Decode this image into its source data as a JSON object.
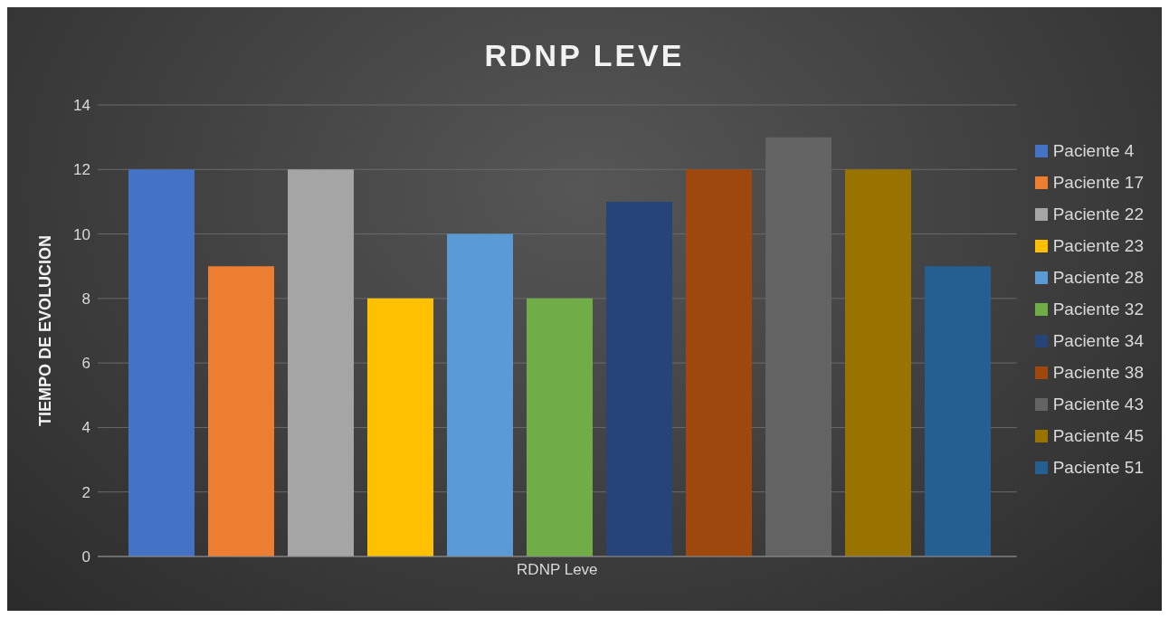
{
  "chart_data": {
    "type": "bar",
    "title": "RDNP LEVE",
    "xlabel": null,
    "ylabel": "TIEMPO DE EVOLUCION",
    "categories": [
      "RDNP Leve"
    ],
    "series": [
      {
        "name": "Paciente 4",
        "color": "#4472c4",
        "values": [
          12
        ]
      },
      {
        "name": "Paciente 17",
        "color": "#ed7d31",
        "values": [
          9
        ]
      },
      {
        "name": "Paciente 22",
        "color": "#a5a5a5",
        "values": [
          12
        ]
      },
      {
        "name": "Paciente 23",
        "color": "#ffc000",
        "values": [
          8
        ]
      },
      {
        "name": "Paciente 28",
        "color": "#5b9bd5",
        "values": [
          10
        ]
      },
      {
        "name": "Paciente 32",
        "color": "#70ad47",
        "values": [
          8
        ]
      },
      {
        "name": "Paciente 34",
        "color": "#264478",
        "values": [
          11
        ]
      },
      {
        "name": "Paciente 38",
        "color": "#9e480e",
        "values": [
          12
        ]
      },
      {
        "name": "Paciente 43",
        "color": "#636363",
        "values": [
          13
        ]
      },
      {
        "name": "Paciente 45",
        "color": "#997300",
        "values": [
          12
        ]
      },
      {
        "name": "Paciente 51",
        "color": "#255e91",
        "values": [
          9
        ]
      }
    ],
    "ylim": [
      0,
      14
    ],
    "yticks": [
      0,
      2,
      4,
      6,
      8,
      10,
      12,
      14
    ],
    "grid": "y",
    "legend": "right"
  }
}
